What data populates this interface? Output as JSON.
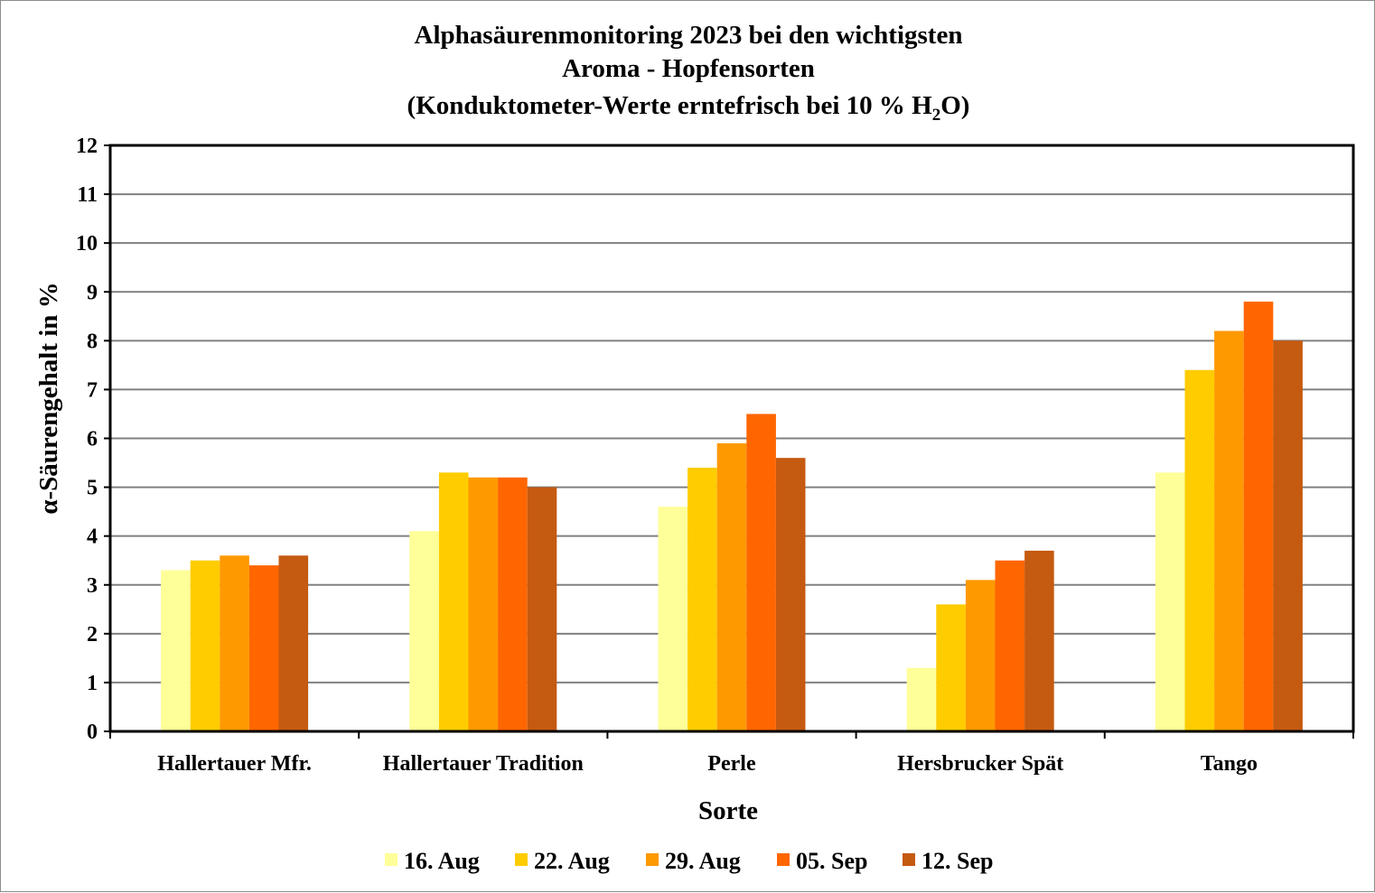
{
  "chart_data": {
    "type": "bar",
    "title_lines": [
      "Alphasäurenmonitoring 2023 bei den wichtigsten",
      "Aroma - Hopfensorten"
    ],
    "title_line3": {
      "before": "(Konduktometer-Werte erntefrisch bei 10 % H",
      "subscript": "2",
      "after": "O)"
    },
    "xlabel": "Sorte",
    "ylabel": "α-Säurengehalt in %",
    "ylim": [
      0,
      12
    ],
    "yticks": [
      0,
      1,
      2,
      3,
      4,
      5,
      6,
      7,
      8,
      9,
      10,
      11,
      12
    ],
    "grid": true,
    "legend_position": "bottom",
    "categories": [
      "Hallertauer Mfr.",
      "Hallertauer Tradition",
      "Perle",
      "Hersbrucker Spät",
      "Tango"
    ],
    "series": [
      {
        "name": "16. Aug",
        "color": "#ffff99",
        "values": [
          3.3,
          4.1,
          4.6,
          1.3,
          5.3
        ]
      },
      {
        "name": "22. Aug",
        "color": "#ffcc00",
        "values": [
          3.5,
          5.3,
          5.4,
          2.6,
          7.4
        ]
      },
      {
        "name": "29. Aug",
        "color": "#ff9900",
        "values": [
          3.6,
          5.2,
          5.9,
          3.1,
          8.2
        ]
      },
      {
        "name": "05. Sep",
        "color": "#ff6600",
        "values": [
          3.4,
          5.2,
          6.5,
          3.5,
          8.8
        ]
      },
      {
        "name": "12. Sep",
        "color": "#c55a11",
        "values": [
          3.6,
          5.0,
          5.6,
          3.7,
          8.0
        ]
      }
    ]
  }
}
